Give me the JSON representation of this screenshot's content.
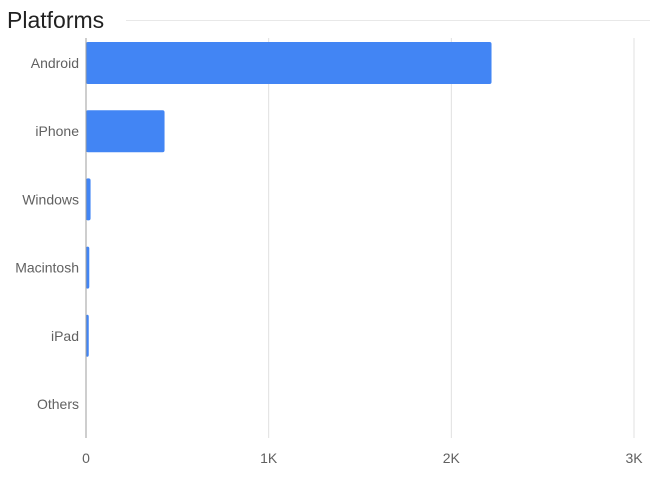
{
  "header": {
    "title": "Platforms"
  },
  "colors": {
    "bar": "#4285f4",
    "gridline": "#e0e0e0",
    "axis": "#9e9e9e",
    "label": "#616161",
    "title": "#212121"
  },
  "chart_data": {
    "type": "bar",
    "orientation": "horizontal",
    "title": "Platforms",
    "xlabel": "",
    "ylabel": "",
    "categories": [
      "Android",
      "iPhone",
      "Windows",
      "Macintosh",
      "iPad",
      "Others"
    ],
    "values": [
      2220,
      430,
      25,
      18,
      15,
      2
    ],
    "xlim": [
      0,
      3000
    ],
    "x_ticks": [
      0,
      1000,
      2000,
      3000
    ],
    "x_tick_labels": [
      "0",
      "1K",
      "2K",
      "3K"
    ],
    "grid": true,
    "legend": "none"
  }
}
